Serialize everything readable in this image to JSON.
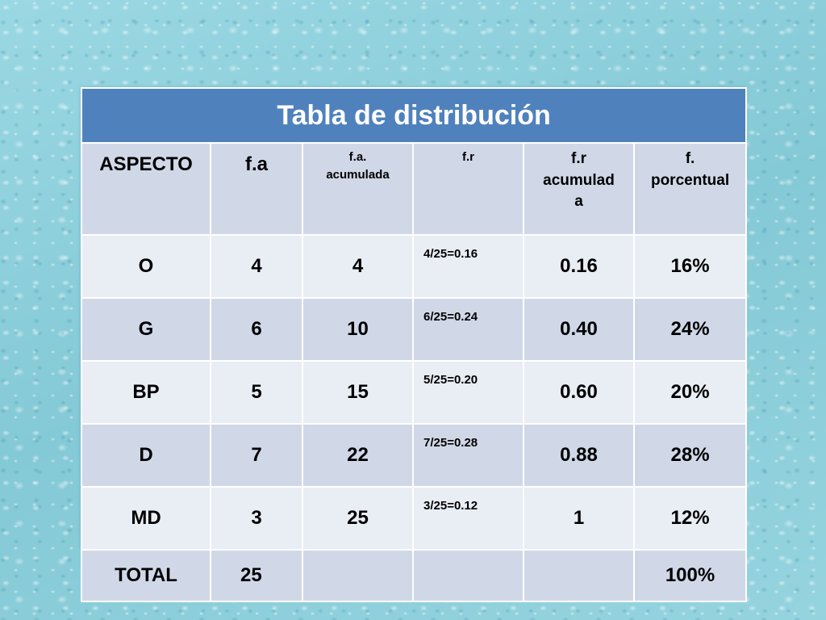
{
  "table": {
    "title": "Tabla de distribución",
    "headers": [
      "ASPECTO",
      "f.a",
      "f.a.\nacumulada",
      "f.r",
      "f.r\nacumulad\na",
      "f.\nporcentual"
    ],
    "rows": [
      {
        "aspecto": "O",
        "fa": "4",
        "fa_acum": "4",
        "fr": "4/25=0.16",
        "fr_acum": "0.16",
        "porcentual": "16%"
      },
      {
        "aspecto": "G",
        "fa": "6",
        "fa_acum": "10",
        "fr": "6/25=0.24",
        "fr_acum": "0.40",
        "porcentual": "24%"
      },
      {
        "aspecto": "BP",
        "fa": "5",
        "fa_acum": "15",
        "fr": "5/25=0.20",
        "fr_acum": "0.60",
        "porcentual": "20%"
      },
      {
        "aspecto": "D",
        "fa": "7",
        "fa_acum": "22",
        "fr": "7/25=0.28",
        "fr_acum": "0.88",
        "porcentual": "28%"
      },
      {
        "aspecto": "MD",
        "fa": "3",
        "fa_acum": "25",
        "fr": "3/25=0.12",
        "fr_acum": "1",
        "porcentual": "12%"
      },
      {
        "aspecto": "TOTAL",
        "fa": "25",
        "fa_acum": "",
        "fr": "",
        "fr_acum": "",
        "porcentual": "100%"
      }
    ]
  },
  "colors": {
    "title_bg": "#4f81bd",
    "row_dark": "#d0d8e8",
    "row_light": "#e9edf4",
    "background": "#8fd0dc"
  }
}
